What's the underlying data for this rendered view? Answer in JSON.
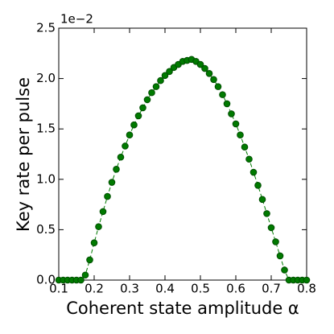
{
  "chart_data": {
    "type": "line",
    "xlabel": "Coherent state amplitude α",
    "ylabel": "Key rate per pulse",
    "offset_text": "1e−2",
    "x": [
      0.1,
      0.1125,
      0.125,
      0.1375,
      0.15,
      0.1625,
      0.175,
      0.1875,
      0.2,
      0.2125,
      0.225,
      0.2375,
      0.25,
      0.2625,
      0.275,
      0.2875,
      0.3,
      0.3125,
      0.325,
      0.3375,
      0.35,
      0.3625,
      0.375,
      0.3875,
      0.4,
      0.4125,
      0.425,
      0.4375,
      0.45,
      0.4625,
      0.475,
      0.4875,
      0.5,
      0.5125,
      0.525,
      0.5375,
      0.55,
      0.5625,
      0.575,
      0.5875,
      0.6,
      0.6125,
      0.625,
      0.6375,
      0.65,
      0.6625,
      0.675,
      0.6875,
      0.7,
      0.7125,
      0.725,
      0.7375,
      0.75,
      0.7625,
      0.775,
      0.7875,
      0.8
    ],
    "series": [
      {
        "color": "#007a00",
        "values": [
          0,
          0,
          0,
          0,
          0,
          0,
          0.05,
          0.2,
          0.37,
          0.53,
          0.68,
          0.83,
          0.97,
          1.1,
          1.22,
          1.33,
          1.44,
          1.54,
          1.63,
          1.71,
          1.79,
          1.86,
          1.92,
          1.98,
          2.03,
          2.07,
          2.11,
          2.14,
          2.17,
          2.18,
          2.19,
          2.17,
          2.14,
          2.1,
          2.05,
          1.99,
          1.92,
          1.84,
          1.75,
          1.65,
          1.55,
          1.44,
          1.32,
          1.2,
          1.07,
          0.94,
          0.8,
          0.66,
          0.52,
          0.38,
          0.24,
          0.1,
          0,
          0,
          0,
          0,
          0
        ]
      }
    ],
    "xlim": [
      0.1,
      0.8
    ],
    "xticks": [
      0.1,
      0.2,
      0.3,
      0.4,
      0.5,
      0.6,
      0.7,
      0.8
    ],
    "ylim": [
      0,
      2.5
    ],
    "yticks": [
      {
        "value": 0,
        "label": "0.0"
      },
      0.5,
      {
        "value": 1,
        "label": "1.0"
      },
      1.5,
      {
        "value": 2,
        "label": "2.0"
      },
      2.5
    ]
  }
}
